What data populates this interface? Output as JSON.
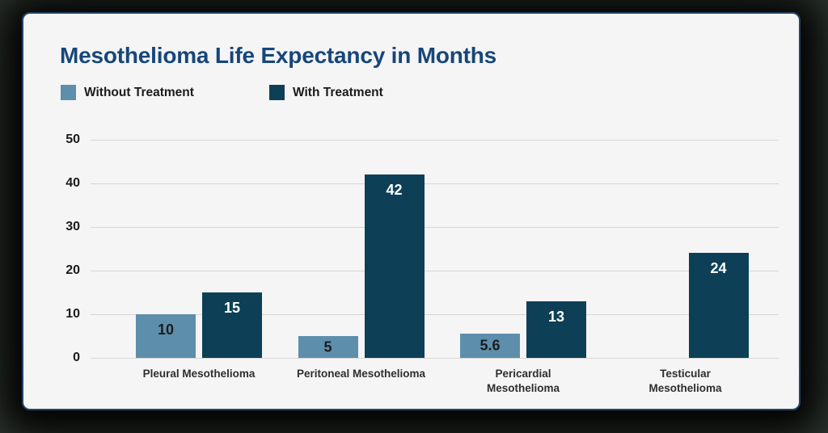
{
  "page": {
    "background_color": "#39443c",
    "card_background": "#f5f5f6",
    "card_border_color": "#23456a"
  },
  "header": {
    "title": "Mesothelioma Life Expectancy in Months",
    "title_color": "#17477a"
  },
  "legend": {
    "items": [
      {
        "label": "Without Treatment",
        "color": "#5d8fac"
      },
      {
        "label": "With Treatment",
        "color": "#0d3f57"
      }
    ]
  },
  "chart_data": {
    "type": "bar",
    "title": "Mesothelioma Life Expectancy in Months",
    "categories": [
      "Pleural Mesothelioma",
      "Peritoneal Mesothelioma",
      "Pericardial\nMesothelioma",
      "Testicular\nMesothelioma"
    ],
    "series": [
      {
        "name": "Without Treatment",
        "color": "#5d8fac",
        "pattern": "solid",
        "value_label_color": "#1c1c1c",
        "values": [
          10,
          5,
          5.6,
          null
        ]
      },
      {
        "name": "With Treatment",
        "color": "#0d3f57",
        "pattern": "dots",
        "value_label_color": "#ffffff",
        "values": [
          15,
          42,
          13,
          24
        ]
      }
    ],
    "xlabel": "",
    "ylabel": "",
    "ylim": [
      0,
      50
    ],
    "yticks": [
      0,
      10,
      20,
      30,
      40,
      50
    ],
    "grid": "horizontal",
    "gridline_color": "#d6d6d6",
    "legend_position": "top-left"
  }
}
